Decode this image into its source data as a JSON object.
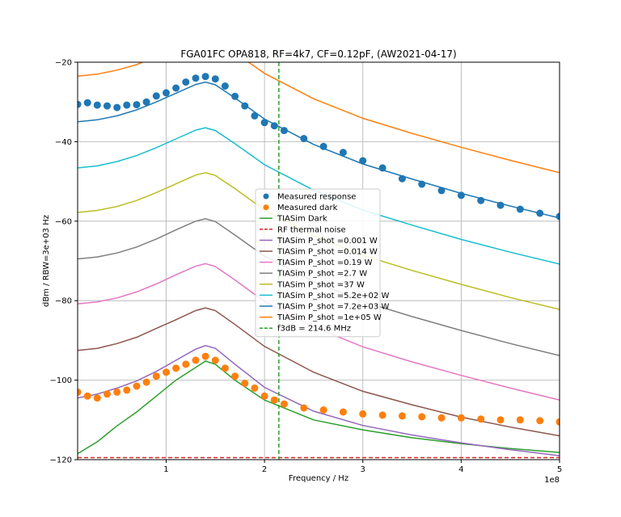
{
  "chart_data": {
    "type": "line",
    "title": "FGA01FC OPA818, RF=4k7, CF=0.12pF, (AW2021-04-17)",
    "xlabel": "Frequency / Hz",
    "ylabel": "dBm / RBW=3e+03 Hz",
    "x_offset_label": "1e8",
    "xlim": [
      0.1,
      5.0
    ],
    "ylim": [
      -120,
      -20
    ],
    "x_ticks": [
      1,
      2,
      3,
      4,
      5
    ],
    "y_ticks": [
      -120,
      -100,
      -80,
      -60,
      -40,
      -20
    ],
    "grid": true,
    "legend_position": "center",
    "series": [
      {
        "name": "Measured response",
        "kind": "scatter",
        "color": "#1f77b4",
        "points": [
          [
            0.1,
            -30.6
          ],
          [
            0.2,
            -30.2
          ],
          [
            0.3,
            -30.8
          ],
          [
            0.4,
            -31.0
          ],
          [
            0.5,
            -31.4
          ],
          [
            0.6,
            -30.8
          ],
          [
            0.7,
            -30.7
          ],
          [
            0.8,
            -30.0
          ],
          [
            0.9,
            -28.5
          ],
          [
            1.0,
            -27.7
          ],
          [
            1.1,
            -26.5
          ],
          [
            1.2,
            -25.0
          ],
          [
            1.3,
            -24.0
          ],
          [
            1.4,
            -23.6
          ],
          [
            1.5,
            -24.2
          ],
          [
            1.6,
            -26.0
          ],
          [
            1.7,
            -28.6
          ],
          [
            1.8,
            -31.0
          ],
          [
            1.9,
            -33.5
          ],
          [
            2.0,
            -35.2
          ],
          [
            2.1,
            -36.0
          ],
          [
            2.2,
            -37.2
          ],
          [
            2.4,
            -39.2
          ],
          [
            2.6,
            -41.2
          ],
          [
            2.8,
            -42.7
          ],
          [
            3.0,
            -44.8
          ],
          [
            3.2,
            -46.6
          ],
          [
            3.4,
            -49.3
          ],
          [
            3.6,
            -50.7
          ],
          [
            3.8,
            -52.3
          ],
          [
            4.0,
            -53.5
          ],
          [
            4.2,
            -54.8
          ],
          [
            4.4,
            -56.0
          ],
          [
            4.6,
            -57.0
          ],
          [
            4.8,
            -58.0
          ],
          [
            5.0,
            -58.8
          ]
        ]
      },
      {
        "name": "Measured dark",
        "kind": "scatter",
        "color": "#ff7f0e",
        "points": [
          [
            0.1,
            -103.0
          ],
          [
            0.2,
            -104.0
          ],
          [
            0.3,
            -104.5
          ],
          [
            0.4,
            -103.5
          ],
          [
            0.5,
            -103.0
          ],
          [
            0.6,
            -102.5
          ],
          [
            0.7,
            -101.5
          ],
          [
            0.8,
            -100.5
          ],
          [
            0.9,
            -99.0
          ],
          [
            1.0,
            -98.0
          ],
          [
            1.1,
            -97.0
          ],
          [
            1.2,
            -96.0
          ],
          [
            1.3,
            -95.0
          ],
          [
            1.4,
            -94.0
          ],
          [
            1.5,
            -95.0
          ],
          [
            1.6,
            -97.0
          ],
          [
            1.7,
            -99.0
          ],
          [
            1.8,
            -100.8
          ],
          [
            1.9,
            -102.0
          ],
          [
            2.0,
            -104.0
          ],
          [
            2.1,
            -105.0
          ],
          [
            2.2,
            -106.0
          ],
          [
            2.4,
            -107.0
          ],
          [
            2.6,
            -107.5
          ],
          [
            2.8,
            -108.0
          ],
          [
            3.0,
            -108.5
          ],
          [
            3.2,
            -108.8
          ],
          [
            3.4,
            -109.0
          ],
          [
            3.6,
            -109.2
          ],
          [
            3.8,
            -109.5
          ],
          [
            4.0,
            -109.5
          ],
          [
            4.2,
            -109.8
          ],
          [
            4.4,
            -110.0
          ],
          [
            4.6,
            -110.0
          ],
          [
            4.8,
            -110.2
          ],
          [
            5.0,
            -110.5
          ]
        ]
      },
      {
        "name": "TIASim Dark",
        "kind": "line",
        "color": "#2ca02c",
        "points": [
          [
            0.1,
            -118.5
          ],
          [
            0.3,
            -115.5
          ],
          [
            0.5,
            -111.5
          ],
          [
            0.7,
            -108.0
          ],
          [
            0.9,
            -104.0
          ],
          [
            1.1,
            -100.0
          ],
          [
            1.3,
            -96.8
          ],
          [
            1.4,
            -95.2
          ],
          [
            1.5,
            -96.0
          ],
          [
            1.7,
            -100.0
          ],
          [
            2.0,
            -105.0
          ],
          [
            2.5,
            -110.0
          ],
          [
            3.0,
            -112.5
          ],
          [
            3.5,
            -114.5
          ],
          [
            4.0,
            -116.0
          ],
          [
            4.5,
            -117.2
          ],
          [
            5.0,
            -118.2
          ]
        ]
      },
      {
        "name": "RF thermal noise",
        "kind": "line",
        "dashed": true,
        "color": "#d62728",
        "points": [
          [
            0.1,
            -119.5
          ],
          [
            5.0,
            -119.5
          ]
        ]
      },
      {
        "name": "TIASim P_shot =0.001 W",
        "kind": "line",
        "color": "#9467bd",
        "points": [
          [
            0.1,
            -104.5
          ],
          [
            0.3,
            -103.5
          ],
          [
            0.5,
            -102.0
          ],
          [
            0.7,
            -100.2
          ],
          [
            0.9,
            -97.8
          ],
          [
            1.1,
            -95.0
          ],
          [
            1.3,
            -92.2
          ],
          [
            1.4,
            -91.3
          ],
          [
            1.5,
            -92.0
          ],
          [
            1.7,
            -96.0
          ],
          [
            2.0,
            -101.8
          ],
          [
            2.5,
            -107.8
          ],
          [
            3.0,
            -111.4
          ],
          [
            3.5,
            -113.8
          ],
          [
            4.0,
            -115.8
          ],
          [
            4.5,
            -117.5
          ],
          [
            5.0,
            -119.0
          ]
        ]
      },
      {
        "name": "TIASim P_shot =0.014 W",
        "kind": "line",
        "color": "#8c564b",
        "points": [
          [
            0.1,
            -92.5
          ],
          [
            0.3,
            -92.0
          ],
          [
            0.5,
            -90.8
          ],
          [
            0.7,
            -89.2
          ],
          [
            0.9,
            -87.0
          ],
          [
            1.1,
            -84.8
          ],
          [
            1.3,
            -82.5
          ],
          [
            1.4,
            -81.8
          ],
          [
            1.5,
            -82.5
          ],
          [
            1.7,
            -86.0
          ],
          [
            2.0,
            -91.5
          ],
          [
            2.5,
            -98.0
          ],
          [
            3.0,
            -102.8
          ],
          [
            3.5,
            -106.2
          ],
          [
            4.0,
            -109.3
          ],
          [
            4.5,
            -111.8
          ],
          [
            5.0,
            -114.0
          ]
        ]
      },
      {
        "name": "TIASim P_shot =0.19 W",
        "kind": "line",
        "color": "#e377c2",
        "points": [
          [
            0.1,
            -80.8
          ],
          [
            0.3,
            -80.3
          ],
          [
            0.5,
            -79.3
          ],
          [
            0.7,
            -77.8
          ],
          [
            0.9,
            -75.8
          ],
          [
            1.1,
            -73.5
          ],
          [
            1.3,
            -71.3
          ],
          [
            1.4,
            -70.7
          ],
          [
            1.5,
            -71.4
          ],
          [
            1.7,
            -74.8
          ],
          [
            2.0,
            -80.2
          ],
          [
            2.5,
            -86.6
          ],
          [
            3.0,
            -91.6
          ],
          [
            3.5,
            -95.4
          ],
          [
            4.0,
            -98.8
          ],
          [
            4.5,
            -102.0
          ],
          [
            5.0,
            -105.0
          ]
        ]
      },
      {
        "name": "TIASim P_shot =2.7 W",
        "kind": "line",
        "color": "#7f7f7f",
        "points": [
          [
            0.1,
            -69.5
          ],
          [
            0.3,
            -69.0
          ],
          [
            0.5,
            -68.0
          ],
          [
            0.7,
            -66.5
          ],
          [
            0.9,
            -64.5
          ],
          [
            1.1,
            -62.2
          ],
          [
            1.3,
            -60.0
          ],
          [
            1.4,
            -59.4
          ],
          [
            1.5,
            -60.1
          ],
          [
            1.7,
            -63.5
          ],
          [
            2.0,
            -68.8
          ],
          [
            2.5,
            -75.2
          ],
          [
            3.0,
            -80.2
          ],
          [
            3.5,
            -84.0
          ],
          [
            4.0,
            -87.5
          ],
          [
            4.5,
            -90.8
          ],
          [
            5.0,
            -93.8
          ]
        ]
      },
      {
        "name": "TIASim P_shot =37 W",
        "kind": "line",
        "color": "#bcbd22",
        "points": [
          [
            0.1,
            -57.8
          ],
          [
            0.3,
            -57.3
          ],
          [
            0.5,
            -56.3
          ],
          [
            0.7,
            -54.8
          ],
          [
            0.9,
            -52.8
          ],
          [
            1.1,
            -50.6
          ],
          [
            1.3,
            -48.4
          ],
          [
            1.4,
            -47.8
          ],
          [
            1.5,
            -48.5
          ],
          [
            1.7,
            -51.8
          ],
          [
            2.0,
            -57.2
          ],
          [
            2.5,
            -63.6
          ],
          [
            3.0,
            -68.6
          ],
          [
            3.5,
            -72.4
          ],
          [
            4.0,
            -75.9
          ],
          [
            4.5,
            -79.2
          ],
          [
            5.0,
            -82.2
          ]
        ]
      },
      {
        "name": "TIASim P_shot =5.2e+02 W",
        "kind": "line",
        "color": "#17becf",
        "points": [
          [
            0.1,
            -46.6
          ],
          [
            0.3,
            -46.1
          ],
          [
            0.5,
            -45.0
          ],
          [
            0.7,
            -43.5
          ],
          [
            0.9,
            -41.5
          ],
          [
            1.1,
            -39.3
          ],
          [
            1.3,
            -37.1
          ],
          [
            1.4,
            -36.5
          ],
          [
            1.5,
            -37.2
          ],
          [
            1.7,
            -40.5
          ],
          [
            2.0,
            -45.8
          ],
          [
            2.5,
            -52.2
          ],
          [
            3.0,
            -57.2
          ],
          [
            3.5,
            -61.0
          ],
          [
            4.0,
            -64.6
          ],
          [
            4.5,
            -67.8
          ],
          [
            5.0,
            -70.8
          ]
        ]
      },
      {
        "name": "TIASim P_shot =7.2e+03 W",
        "kind": "line",
        "color": "#1f77b4",
        "points": [
          [
            0.1,
            -35.0
          ],
          [
            0.3,
            -34.5
          ],
          [
            0.5,
            -33.5
          ],
          [
            0.7,
            -32.0
          ],
          [
            0.9,
            -30.0
          ],
          [
            1.1,
            -27.8
          ],
          [
            1.3,
            -25.6
          ],
          [
            1.4,
            -25.0
          ],
          [
            1.5,
            -25.7
          ],
          [
            1.7,
            -29.0
          ],
          [
            2.0,
            -34.3
          ],
          [
            2.5,
            -40.7
          ],
          [
            3.0,
            -45.6
          ],
          [
            3.5,
            -49.4
          ],
          [
            4.0,
            -53.0
          ],
          [
            4.5,
            -56.2
          ],
          [
            5.0,
            -59.2
          ]
        ]
      },
      {
        "name": "TIASim P_shot =1e+05 W",
        "kind": "line",
        "color": "#ff7f0e",
        "points": [
          [
            0.1,
            -23.5
          ],
          [
            0.3,
            -23.0
          ],
          [
            0.5,
            -22.0
          ],
          [
            0.7,
            -20.6
          ],
          [
            0.9,
            -18.6
          ],
          [
            1.1,
            -16.5
          ],
          [
            1.3,
            -14.3
          ],
          [
            1.4,
            -13.7
          ],
          [
            1.5,
            -14.4
          ],
          [
            1.7,
            -17.6
          ],
          [
            2.0,
            -22.8
          ],
          [
            2.5,
            -29.2
          ],
          [
            3.0,
            -34.1
          ],
          [
            3.5,
            -37.9
          ],
          [
            4.0,
            -41.4
          ],
          [
            4.5,
            -44.7
          ],
          [
            5.0,
            -47.8
          ]
        ]
      },
      {
        "name": "f3dB = 214.6 MHz",
        "kind": "vline",
        "dashed": true,
        "color": "#2ca02c",
        "x": 2.146
      }
    ]
  }
}
